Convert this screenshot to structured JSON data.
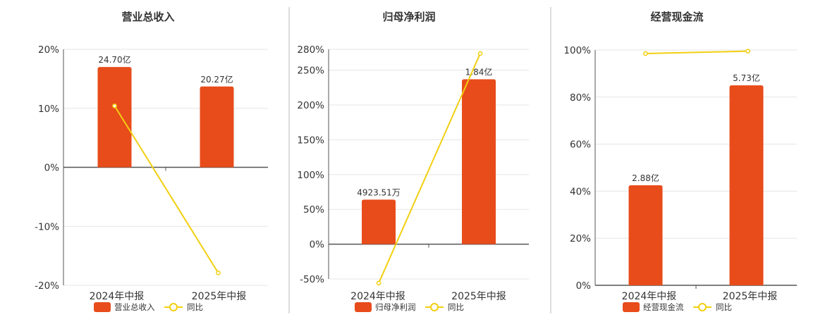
{
  "colors": {
    "bar": "#e84c1b",
    "line": "#f2cf10",
    "axis": "#555555",
    "grid": "#e5e5e5",
    "divider": "#bbbbbb",
    "text": "#333333"
  },
  "legend_line_label": "同比",
  "chart_data": [
    {
      "type": "bar",
      "title": "营业总收入",
      "categories": [
        "2024年中报",
        "2025年中报"
      ],
      "yticks": [
        "20%",
        "10%",
        "0%",
        "-10%",
        "-20%"
      ],
      "ylim": [
        -20,
        20
      ],
      "bar_percent": [
        17,
        13.7
      ],
      "bar_labels": [
        "24.70亿",
        "20.27亿"
      ],
      "bar_series_name": "营业总收入",
      "line_values": [
        10.4,
        -17.9
      ],
      "legend_position": "bottom",
      "grid": true
    },
    {
      "type": "bar",
      "title": "归母净利润",
      "categories": [
        "2024年中报",
        "2025年中报"
      ],
      "yticks": [
        "280%",
        "250%",
        "200%",
        "150%",
        "100%",
        "50%",
        "0%",
        "-50%"
      ],
      "ylim": [
        -50,
        280
      ],
      "bar_percent": [
        64,
        237
      ],
      "bar_labels": [
        "4923.51万",
        "1.84亿"
      ],
      "bar_series_name": "归母净利润",
      "line_values": [
        -56,
        274
      ],
      "legend_position": "bottom",
      "grid": true
    },
    {
      "type": "bar",
      "title": "经营现金流",
      "categories": [
        "2024年中报",
        "2025年中报"
      ],
      "yticks": [
        "100%",
        "80%",
        "60%",
        "40%",
        "20%",
        "0%"
      ],
      "ylim": [
        0,
        100
      ],
      "bar_percent": [
        42.5,
        85
      ],
      "bar_labels": [
        "2.88亿",
        "5.73亿"
      ],
      "bar_series_name": "经营现金流",
      "line_values": [
        98.5,
        99.5
      ],
      "legend_position": "bottom",
      "grid": true
    }
  ]
}
